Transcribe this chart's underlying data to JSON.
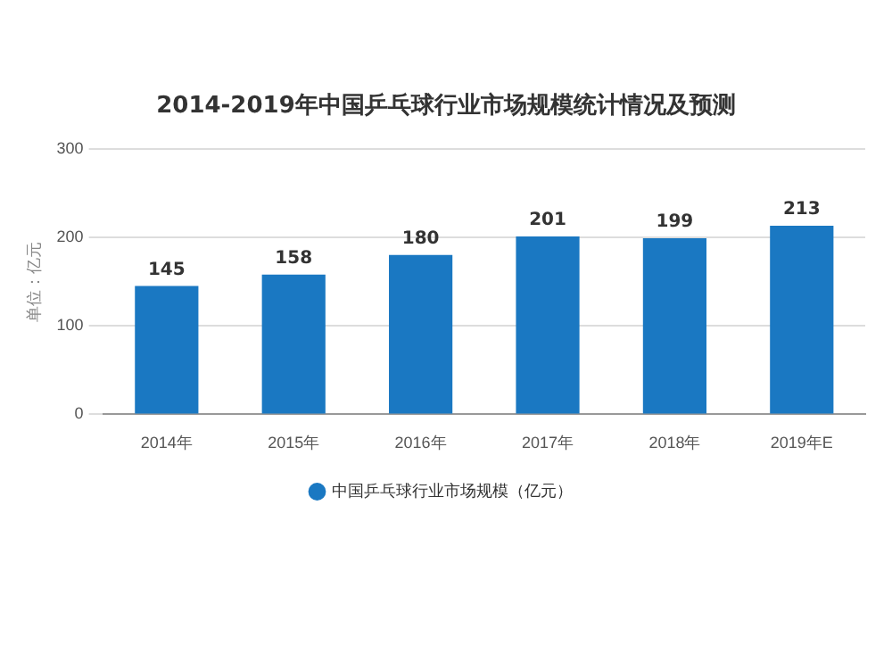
{
  "chart_data": {
    "type": "bar",
    "title": "2014-2019年中国乒乓球行业市场规模统计情况及预测",
    "ylabel": "单位：亿元",
    "categories": [
      "2014年",
      "2015年",
      "2016年",
      "2017年",
      "2018年",
      "2019年E"
    ],
    "series": [
      {
        "name": "中国乒乓球行业市场规模（亿元）",
        "color": "#1a78c2",
        "values": [
          145,
          158,
          180,
          201,
          199,
          213
        ]
      }
    ],
    "ylim": [
      0,
      300
    ],
    "yticks": [
      0,
      100,
      200,
      300
    ],
    "grid": "y",
    "legend": "bottom",
    "data_labels": true
  }
}
